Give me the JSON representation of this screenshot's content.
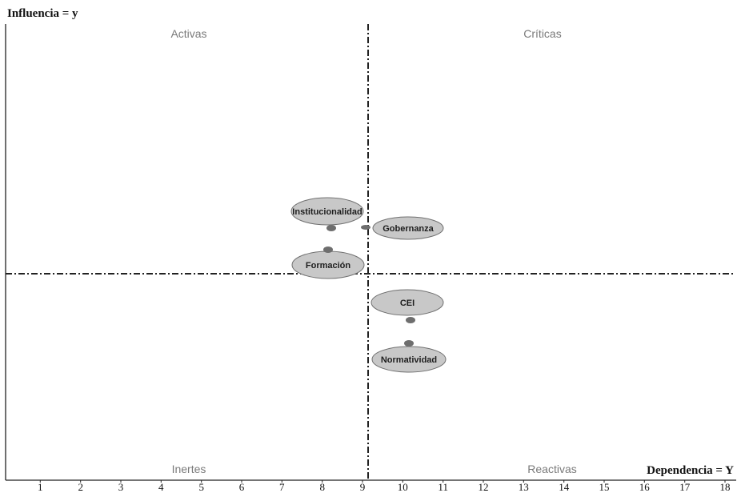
{
  "chart_data": {
    "type": "scatter",
    "y_axis_title": "Influencia = y",
    "x_axis_title": "Dependencia = Y",
    "xlim": [
      0,
      18
    ],
    "x_ticks": [
      "1",
      "2",
      "3",
      "4",
      "5",
      "6",
      "7",
      "8",
      "9",
      "10",
      "11",
      "12",
      "13",
      "14",
      "15",
      "16",
      "17",
      "18"
    ],
    "dividers": {
      "x": 9.1,
      "y_position": "middle"
    },
    "quadrants": {
      "top_left": "Activas",
      "top_right": "Críticas",
      "bottom_left": "Inertes",
      "bottom_right": "Reactivas"
    },
    "points": [
      {
        "name": "Institucionalidad",
        "x": 8.2,
        "label_side": "above-left"
      },
      {
        "name": "Gobernanza",
        "x": 9.0,
        "label_side": "right"
      },
      {
        "name": "Formación",
        "x": 8.1,
        "label_side": "below"
      },
      {
        "name": "CEI",
        "x": 10.2,
        "label_side": "above"
      },
      {
        "name": "Normatividad",
        "x": 10.15,
        "label_side": "below"
      }
    ],
    "point_color": "#6e6e6e",
    "label_fill": "#c8c8c8",
    "label_stroke": "#707070"
  }
}
